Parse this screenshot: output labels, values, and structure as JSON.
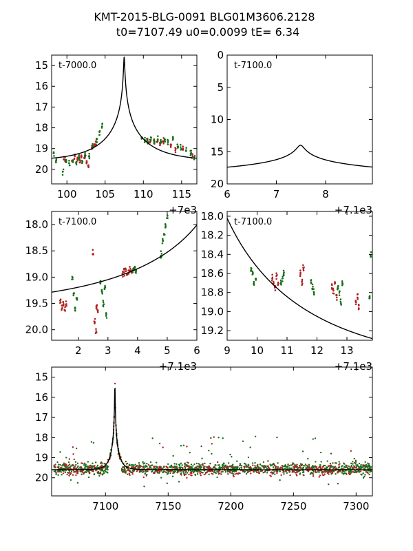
{
  "figure": {
    "title_line1": "KMT-2015-BLG-0091 BLG01M3606.2128",
    "title_line2": "t0=7107.49 u0=0.0099 tE=   6.34"
  },
  "colors": {
    "red": "#b22222",
    "green": "#1a6e1a",
    "model": "#000000"
  },
  "chart_data": [
    {
      "type": "scatter",
      "panel": "top-left",
      "label": "t-7000.0",
      "offset_text": "+7e3",
      "xlim": [
        98,
        117
      ],
      "ylim": [
        20.7,
        14.5
      ],
      "xticks": [
        100,
        105,
        110,
        115
      ],
      "yticks": [
        15,
        16,
        17,
        18,
        19,
        20
      ],
      "model": {
        "t0": 7107.49,
        "u0": 0.0099,
        "tE": 6.34,
        "base": 19.6
      },
      "series": [
        {
          "name": "red",
          "x": [
            99.6,
            99.8,
            100.7,
            101.0,
            101.4,
            101.7,
            101.9,
            102.3,
            102.6,
            102.8,
            103.3,
            103.6,
            103.8,
            110.5,
            110.9,
            111.4,
            111.8,
            112.2,
            112.6,
            113.6,
            114.2,
            115.2,
            116.4
          ],
          "y": [
            19.5,
            19.6,
            19.6,
            19.4,
            19.5,
            19.6,
            19.3,
            19.4,
            19.6,
            19.9,
            19.0,
            18.9,
            18.8,
            18.6,
            18.7,
            18.7,
            18.7,
            18.8,
            18.7,
            18.9,
            19.0,
            19.0,
            19.3
          ]
        },
        {
          "name": "green",
          "x": [
            98.3,
            98.6,
            99.5,
            99.9,
            100.3,
            100.8,
            101.2,
            101.6,
            102.0,
            102.4,
            102.9,
            103.4,
            103.9,
            104.3,
            104.6,
            109.8,
            110.2,
            110.6,
            111.0,
            111.4,
            111.9,
            112.3,
            112.8,
            113.2,
            113.9,
            114.5,
            114.9,
            115.6,
            116.2,
            116.7
          ],
          "y": [
            19.3,
            19.6,
            20.1,
            19.6,
            19.7,
            19.5,
            19.7,
            19.4,
            19.6,
            19.3,
            19.4,
            18.9,
            18.6,
            18.3,
            17.9,
            18.5,
            18.6,
            18.6,
            18.5,
            18.7,
            18.6,
            18.7,
            18.6,
            18.7,
            18.5,
            18.9,
            19.0,
            19.1,
            19.2,
            19.4
          ]
        }
      ]
    },
    {
      "type": "line",
      "panel": "top-right",
      "label": "t-7100.0",
      "offset_text": "+7.1e3",
      "xlim": [
        6,
        8.95
      ],
      "ylim": [
        20,
        0
      ],
      "xticks": [
        6,
        7,
        8
      ],
      "yticks": [
        0,
        5,
        10,
        15,
        20
      ],
      "model": {
        "t0": 7107.49,
        "u0": 0.0099,
        "tE": 6.34,
        "base": 19.0
      },
      "series": []
    },
    {
      "type": "scatter",
      "panel": "middle-left",
      "label": "t-7100.0",
      "offset_text": "+7.1e3",
      "xlim": [
        1.1,
        6
      ],
      "ylim": [
        20.2,
        17.75
      ],
      "xticks": [
        2,
        3,
        4,
        5,
        6
      ],
      "yticks": [
        18.0,
        18.5,
        19.0,
        19.5,
        20.0
      ],
      "model": {
        "t0": 7107.49,
        "u0": 0.0099,
        "tE": 6.34,
        "base": 19.6
      },
      "series": [
        {
          "name": "red",
          "x": [
            1.4,
            1.45,
            1.5,
            1.55,
            1.6,
            2.5,
            2.55,
            2.6,
            2.62,
            2.65,
            3.5,
            3.55,
            3.6,
            3.65,
            3.7,
            3.75,
            3.8
          ],
          "y": [
            19.45,
            19.55,
            19.5,
            19.6,
            19.5,
            18.55,
            19.85,
            20.05,
            19.55,
            19.65,
            18.95,
            18.9,
            18.85,
            18.95,
            18.9,
            18.85,
            18.9
          ]
        },
        {
          "name": "green",
          "x": [
            1.8,
            1.85,
            1.9,
            1.95,
            2.75,
            2.8,
            2.85,
            2.9,
            2.95,
            3.85,
            3.9,
            3.95,
            4.8,
            4.85,
            4.9,
            4.95,
            5.0
          ],
          "y": [
            19.0,
            19.3,
            19.6,
            19.4,
            19.1,
            19.3,
            19.5,
            19.2,
            19.7,
            18.85,
            18.8,
            18.9,
            18.55,
            18.3,
            18.2,
            18.0,
            17.85
          ]
        }
      ]
    },
    {
      "type": "scatter",
      "panel": "middle-right",
      "label": "t-7100.0",
      "offset_text": "+7.1e3",
      "xlim": [
        9,
        13.85
      ],
      "ylim": [
        19.3,
        17.95
      ],
      "xticks": [
        9,
        10,
        11,
        12,
        13
      ],
      "yticks": [
        18.0,
        18.2,
        18.4,
        18.6,
        18.8,
        19.0,
        19.2
      ],
      "model": {
        "t0": 7107.49,
        "u0": 0.0099,
        "tE": 6.34,
        "base": 19.6
      },
      "series": [
        {
          "name": "red",
          "x": [
            10.5,
            10.55,
            10.6,
            10.65,
            10.7,
            11.45,
            11.5,
            11.55,
            12.5,
            12.55,
            12.6,
            12.65,
            13.3,
            13.35,
            13.4
          ],
          "y": [
            18.65,
            18.7,
            18.75,
            18.62,
            18.7,
            18.6,
            18.7,
            18.55,
            18.75,
            18.8,
            18.7,
            18.85,
            18.9,
            18.85,
            18.95
          ]
        },
        {
          "name": "green",
          "x": [
            9.8,
            9.85,
            9.9,
            9.95,
            10.8,
            10.85,
            10.9,
            11.8,
            11.85,
            11.9,
            12.7,
            12.75,
            12.8,
            12.85,
            13.75,
            13.8
          ],
          "y": [
            18.55,
            18.6,
            18.7,
            18.65,
            18.7,
            18.65,
            18.6,
            18.7,
            18.75,
            18.8,
            18.75,
            18.8,
            18.9,
            18.7,
            18.85,
            18.4
          ]
        }
      ]
    },
    {
      "type": "scatter",
      "panel": "bottom",
      "label": "",
      "offset_text": "",
      "xlim": [
        7057,
        7313
      ],
      "ylim": [
        20.9,
        14.5
      ],
      "xticks": [
        7100,
        7150,
        7200,
        7250,
        7300
      ],
      "yticks": [
        15,
        16,
        17,
        18,
        19,
        20
      ],
      "model": {
        "t0": 7107.49,
        "u0": 0.0099,
        "tE": 6.34,
        "base": 19.6
      },
      "series": [
        {
          "name": "green",
          "x_range": [
            7059,
            7312
          ],
          "y_center": 19.55,
          "y_spread": 0.45,
          "count": 1200
        },
        {
          "name": "red",
          "x_range": [
            7059,
            7312
          ],
          "y_center": 19.6,
          "y_spread": 0.5,
          "count": 500
        }
      ]
    }
  ]
}
